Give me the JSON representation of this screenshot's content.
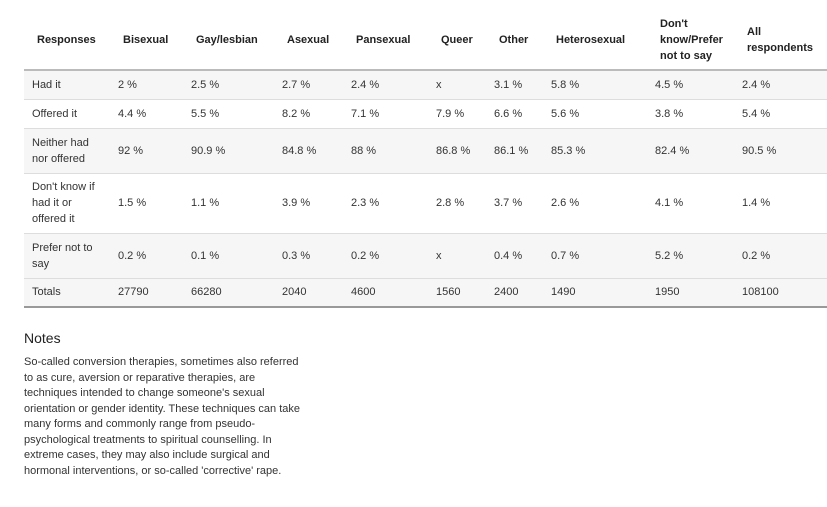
{
  "table": {
    "headers": [
      "Responses",
      "Bisexual",
      "Gay/lesbian",
      "Asexual",
      "Pansexual",
      "Queer",
      "Other",
      "Heterosexual",
      "Don't know/Prefer not to say",
      "All respondents"
    ],
    "rows": [
      [
        "Had it",
        "2 %",
        "2.5 %",
        "2.7 %",
        "2.4 %",
        "x",
        "3.1 %",
        "5.8 %",
        "4.5 %",
        "2.4 %"
      ],
      [
        "Offered it",
        "4.4 %",
        "5.5 %",
        "8.2 %",
        "7.1 %",
        "7.9 %",
        "6.6 %",
        "5.6 %",
        "3.8 %",
        "5.4 %"
      ],
      [
        "Neither had nor offered",
        "92 %",
        "90.9 %",
        "84.8 %",
        "88 %",
        "86.8 %",
        "86.1 %",
        "85.3 %",
        "82.4 %",
        "90.5 %"
      ],
      [
        "Don't know if had it or offered it",
        "1.5 %",
        "1.1 %",
        "3.9 %",
        "2.3 %",
        "2.8 %",
        "3.7 %",
        "2.6 %",
        "4.1 %",
        "1.4 %"
      ],
      [
        "Prefer not to say",
        "0.2 %",
        "0.1 %",
        "0.3 %",
        "0.2 %",
        "x",
        "0.4 %",
        "0.7 %",
        "5.2 %",
        "0.2 %"
      ],
      [
        "Totals",
        27790,
        66280,
        2040,
        4600,
        1560,
        2400,
        1490,
        1950,
        108100
      ]
    ]
  },
  "notes": {
    "title": "Notes",
    "text": "So-called conversion therapies, sometimes also referred to as cure, aversion or reparative therapies, are techniques intended to change someone's sexual orientation or gender identity. These techniques can take many forms and commonly range from pseudo-psychological treatments to spiritual counselling. In extreme cases, they may also include surgical and hormonal interventions, or so-called 'corrective' rape."
  }
}
